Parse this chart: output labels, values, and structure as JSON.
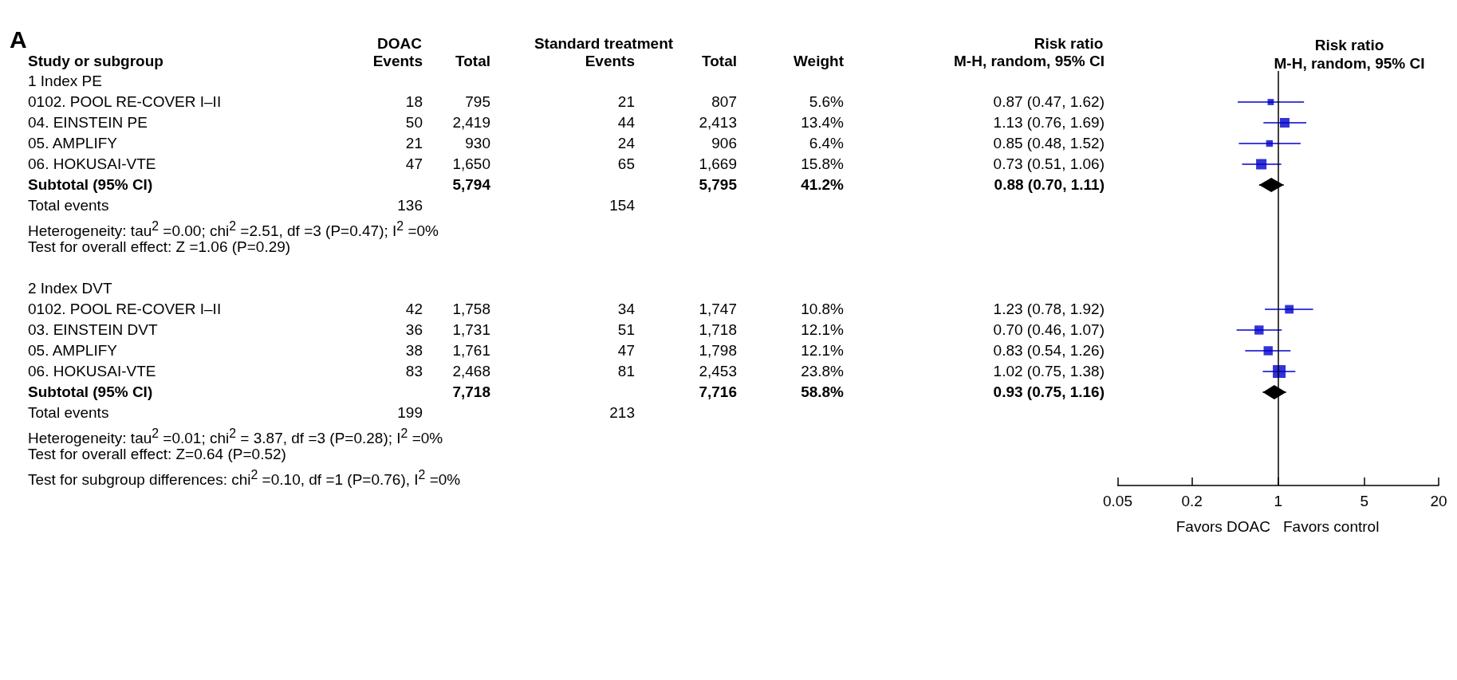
{
  "chart_data": [
    {
      "type": "other",
      "ylabel": "Study or subgroup",
      "annotations": [
        "A",
        "DOAC",
        "Standard treatment",
        "Risk ratio"
      ],
      "categories": [
        "Events",
        "Total",
        "Events",
        "Total",
        "Weight",
        "M-H, random, 95% CI"
      ],
      "y_categories": [
        "1 Index PE",
        "0102. POOL RE-COVER I–II",
        "04. EINSTEIN PE",
        "05. AMPLIFY",
        "06. HOKUSAI-VTE",
        "Subtotal (95% CI)",
        "Total events",
        "Heterogeneity: tau$^{2}$ =0.00; chi$^{2}$ =2.51, df =3 (P=0.47); I$^{2}$ =0%",
        "Test for overall effect: Z =1.06 (P=0.29)",
        null,
        "2 Index DVT",
        "0102. POOL RE-COVER I–II",
        "03. EINSTEIN DVT",
        "05. AMPLIFY",
        "06. HOKUSAI-VTE",
        "Subtotal (95% CI)",
        "Total events",
        "Heterogeneity: tau$^{2}$ =0.01; chi$^{2}$ = 3.87, df =3 (P=0.28); I$^{2}$ =0%",
        "Test for overall effect: Z=0.64 (P=0.52)",
        "Test for subgroup differences: chi$^{2}$ =0.10, df =1 (P=0.76), I$^{2}$ =0%"
      ],
      "cell_labels": [
        [
          null,
          null,
          null,
          null,
          null,
          null
        ],
        [
          "18",
          "795",
          "21",
          "807",
          "5.6%",
          "0.87 (0.47, 1.62)"
        ],
        [
          "50",
          "2,419",
          "44",
          "2,413",
          "13.4%",
          "1.13 (0.76, 1.69)"
        ],
        [
          "21",
          "930",
          "24",
          "906",
          "6.4%",
          "0.85 (0.48, 1.52)"
        ],
        [
          "47",
          "1,650",
          "65",
          "1,669",
          "15.8%",
          "0.73 (0.51, 1.06)"
        ],
        [
          null,
          "5,794",
          null,
          "5,795",
          "41.2%",
          "0.88 (0.70, 1.11)"
        ],
        [
          "136",
          null,
          "154",
          null,
          null,
          null
        ],
        [
          null,
          null,
          null,
          null,
          null,
          null
        ],
        [
          null,
          null,
          null,
          null,
          null,
          null
        ],
        [
          null,
          null,
          null,
          null,
          null,
          null
        ],
        [
          null,
          null,
          null,
          null,
          null,
          null
        ],
        [
          "42",
          "1,758",
          "34",
          "1,747",
          "10.8%",
          "1.23 (0.78, 1.92)"
        ],
        [
          "36",
          "1,731",
          "51",
          "1,718",
          "12.1%",
          "0.70 (0.46, 1.07)"
        ],
        [
          "38",
          "1,761",
          "47",
          "1,798",
          "12.1%",
          "0.83 (0.54, 1.26)"
        ],
        [
          "83",
          "2,468",
          "81",
          "2,453",
          "23.8%",
          "1.02 (0.75, 1.38)"
        ],
        [
          null,
          "7,718",
          null,
          "7,716",
          "58.8%",
          "0.93 (0.75, 1.16)"
        ],
        [
          "199",
          null,
          "213",
          null,
          null,
          null
        ],
        [
          null,
          null,
          null,
          null,
          null,
          null
        ],
        [
          null,
          null,
          null,
          null,
          null,
          null
        ],
        [
          null,
          null,
          null,
          null,
          null,
          null
        ]
      ]
    },
    {
      "type": "scatter",
      "title": "Risk ratio",
      "subtitle": "M-H, random, 95% CI",
      "orientation": "horizontal",
      "log": "x",
      "tick_labels": "x",
      "categories": [
        null,
        null,
        null,
        null,
        null,
        null,
        null,
        null,
        null,
        null,
        null,
        null,
        null,
        null,
        null,
        null,
        null,
        null,
        null,
        null
      ],
      "series": [
        {
          "color": "#0000cc",
          "marker": "square",
          "values": [
            null,
            0.87,
            1.13,
            0.85,
            0.73,
            null,
            null,
            null,
            null,
            null,
            null,
            1.23,
            0.7,
            0.83,
            1.02,
            null,
            null,
            null,
            null,
            null
          ],
          "errors": [
            null,
            [
              0.47,
              1.62
            ],
            [
              0.76,
              1.69
            ],
            [
              0.48,
              1.52
            ],
            [
              0.51,
              1.06
            ],
            null,
            null,
            null,
            null,
            null,
            null,
            [
              0.78,
              1.92
            ],
            [
              0.46,
              1.07
            ],
            [
              0.54,
              1.26
            ],
            [
              0.75,
              1.38
            ],
            null,
            null,
            null,
            null,
            null
          ],
          "sizes": [
            null,
            0.235,
            0.563,
            0.269,
            0.664,
            null,
            null,
            null,
            null,
            null,
            null,
            0.454,
            0.508,
            0.508,
            1,
            null,
            null,
            null,
            null,
            null
          ]
        },
        {
          "color": "#000000",
          "marker": "diamond",
          "values": [
            null,
            null,
            null,
            null,
            null,
            0.88,
            null,
            null,
            null,
            null,
            null,
            null,
            null,
            null,
            null,
            0.93,
            null,
            null,
            null,
            null
          ],
          "errors": [
            null,
            null,
            null,
            null,
            null,
            [
              0.7,
              1.11
            ],
            null,
            null,
            null,
            null,
            null,
            null,
            null,
            null,
            null,
            [
              0.75,
              1.16
            ],
            null,
            null,
            null,
            null
          ]
        }
      ],
      "xlim": [
        0.05,
        20
      ],
      "xticks": [
        0.05,
        0.2,
        1,
        5,
        20
      ],
      "ref_lines": [
        {
          "axis": "x",
          "value": 1
        }
      ],
      "annotations": [
        "Favors DOAC",
        "Favors control"
      ]
    }
  ]
}
